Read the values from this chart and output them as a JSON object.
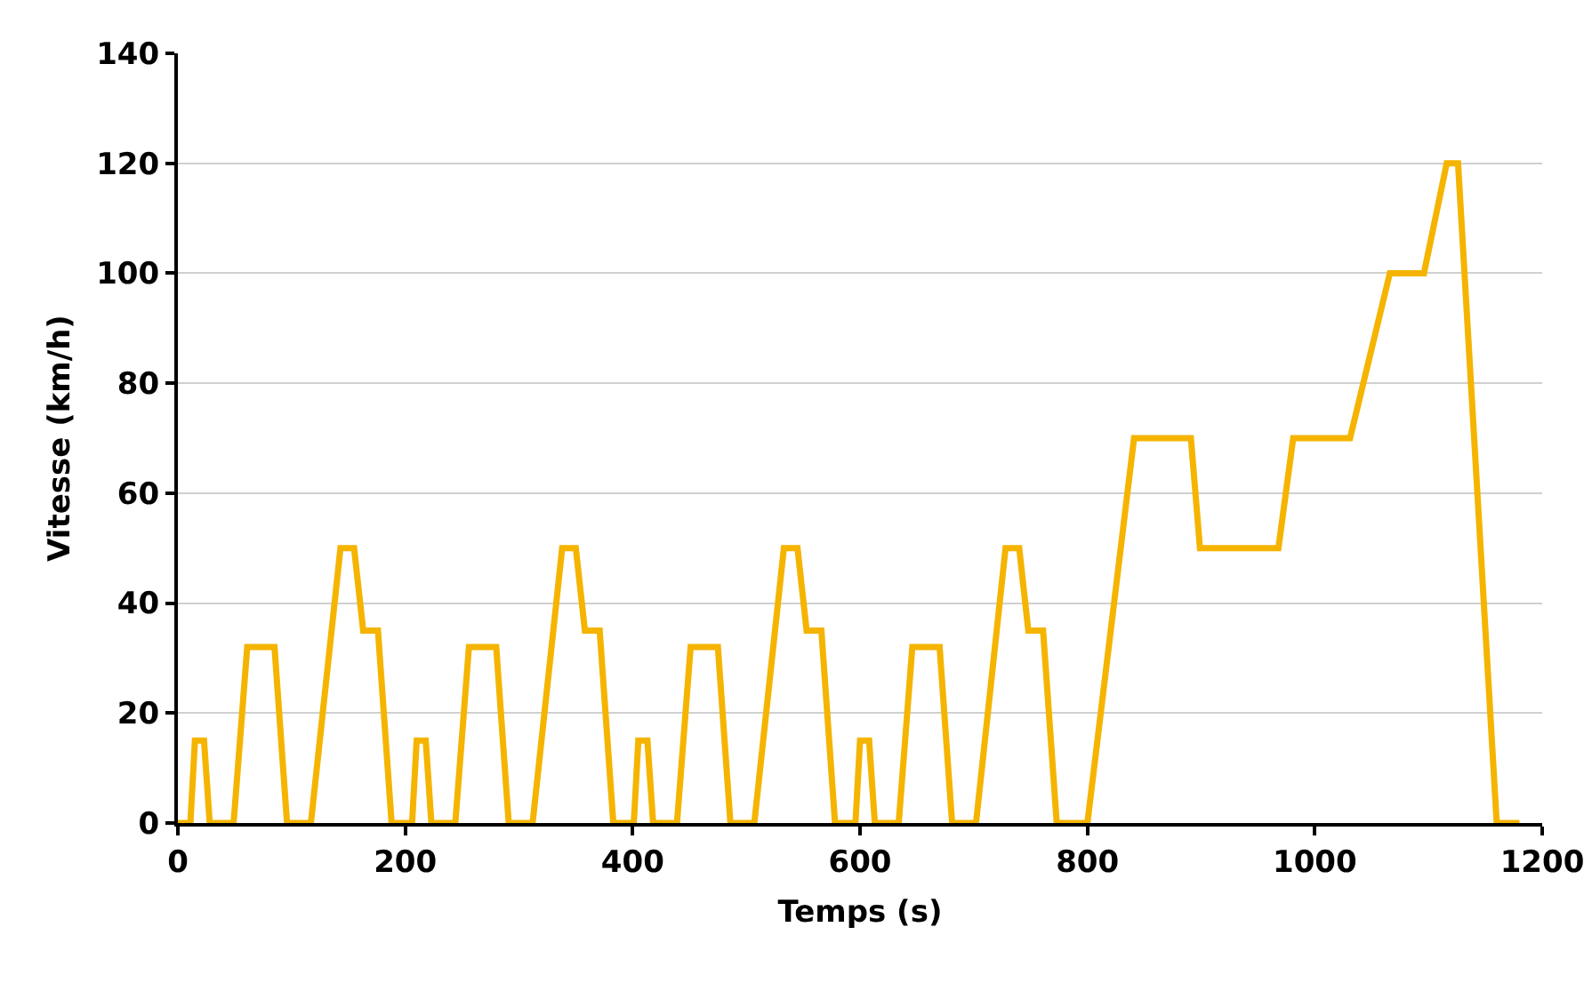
{
  "chart_data": {
    "type": "line",
    "xlabel": "Temps (s)",
    "ylabel": "Vitesse (km/h)",
    "x": [
      0,
      11,
      15,
      23,
      28,
      49,
      61,
      85,
      96,
      117,
      143,
      155,
      163,
      176,
      188,
      195,
      206,
      210,
      218,
      223,
      244,
      256,
      280,
      291,
      312,
      338,
      350,
      358,
      371,
      383,
      390,
      401,
      405,
      413,
      418,
      439,
      451,
      475,
      486,
      507,
      533,
      545,
      553,
      566,
      578,
      585,
      596,
      600,
      608,
      613,
      634,
      646,
      670,
      681,
      702,
      728,
      740,
      748,
      761,
      773,
      780,
      800,
      841,
      891,
      899,
      968,
      981,
      1031,
      1066,
      1096,
      1116,
      1126,
      1160,
      1180
    ],
    "series": [
      {
        "color": "#f5b400",
        "values": [
          0,
          0,
          15,
          15,
          0,
          0,
          32,
          32,
          0,
          0,
          50,
          50,
          35,
          35,
          0,
          0,
          0,
          15,
          15,
          0,
          0,
          32,
          32,
          0,
          0,
          50,
          50,
          35,
          35,
          0,
          0,
          0,
          15,
          15,
          0,
          0,
          32,
          32,
          0,
          0,
          50,
          50,
          35,
          35,
          0,
          0,
          0,
          15,
          15,
          0,
          0,
          32,
          32,
          0,
          0,
          50,
          50,
          35,
          35,
          0,
          0,
          0,
          70,
          70,
          50,
          50,
          70,
          70,
          100,
          100,
          120,
          120,
          0,
          0
        ]
      }
    ],
    "xlim": [
      0,
      1200
    ],
    "xticks": [
      0,
      200,
      400,
      600,
      800,
      1000,
      1200
    ],
    "ylim": [
      0,
      140
    ],
    "yticks": [
      0,
      20,
      40,
      60,
      80,
      100,
      120,
      140
    ],
    "grid": "y",
    "marker": "none",
    "line_style": "solid"
  }
}
